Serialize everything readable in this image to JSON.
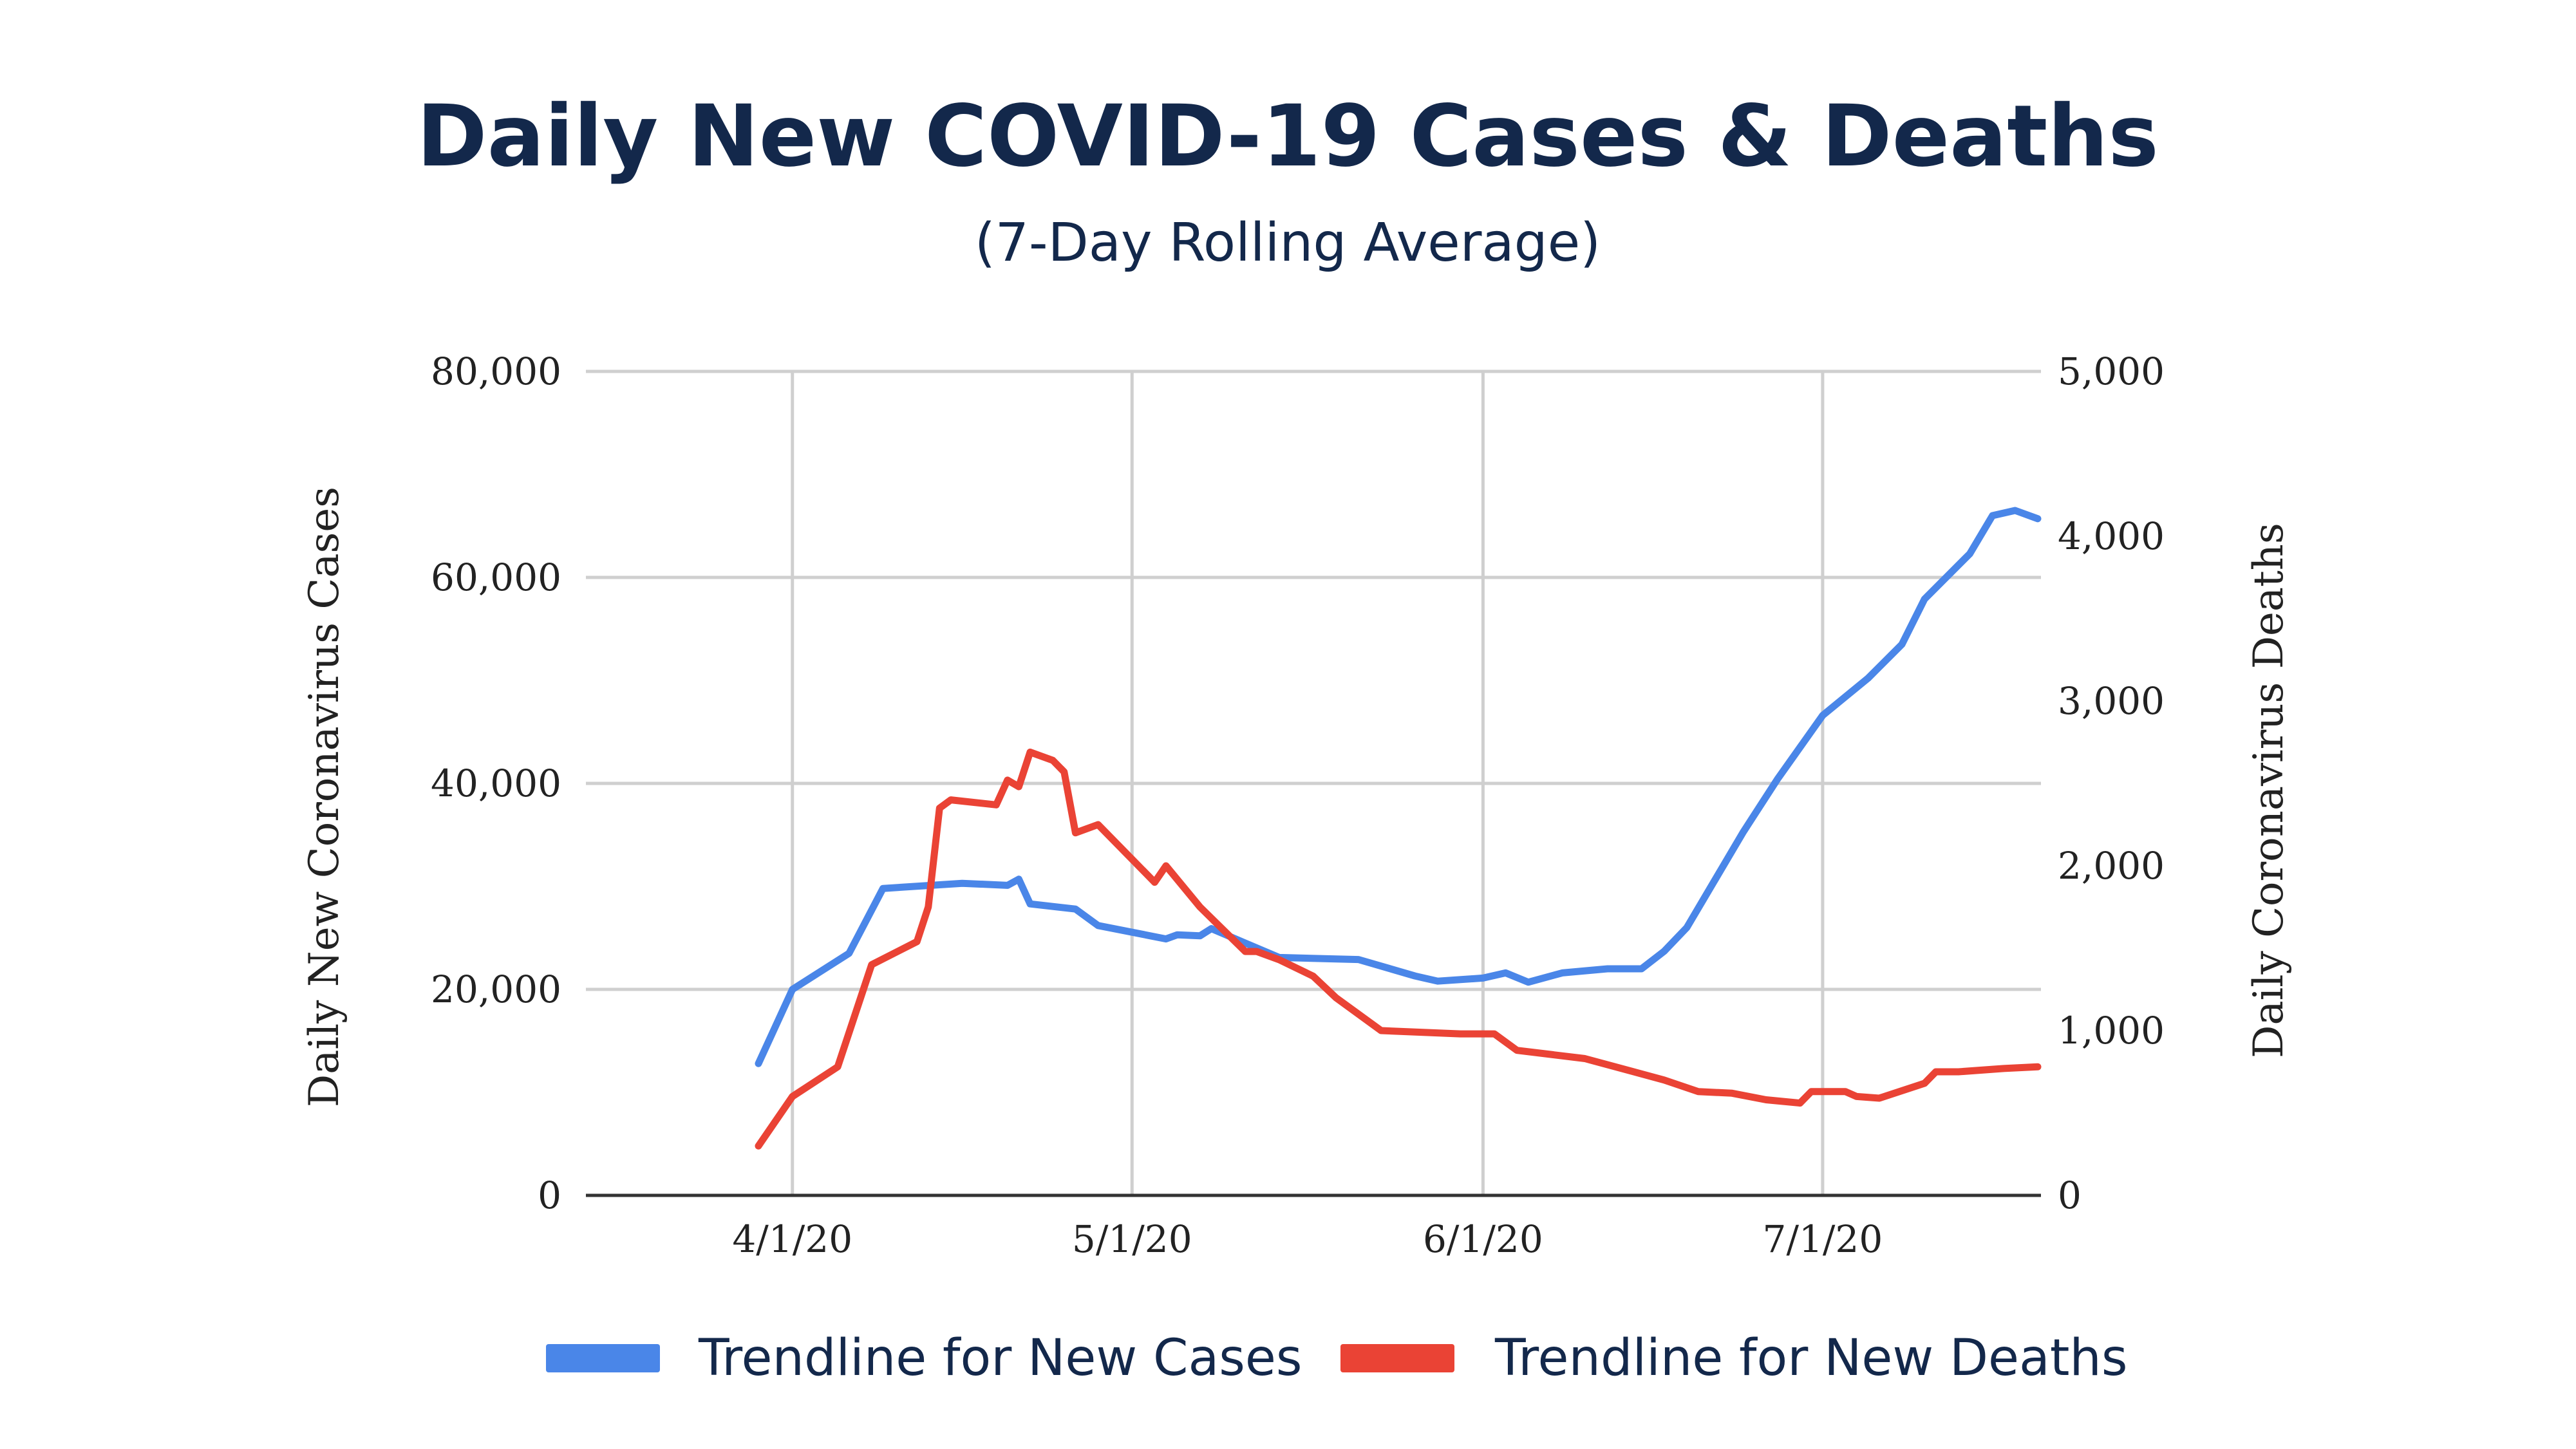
{
  "chart_data": {
    "type": "line",
    "title": "Daily New COVID-19 Cases & Deaths",
    "subtitle": "(7-Day Rolling Average)",
    "x_ticks": [
      "4/1/20",
      "5/1/20",
      "6/1/20",
      "7/1/20"
    ],
    "y_left": {
      "label": "Daily New Coronavirus Cases",
      "range": [
        0,
        80000
      ],
      "ticks": [
        "0",
        "20,000",
        "40,000",
        "60,000",
        "80,000"
      ]
    },
    "y_right": {
      "label": "Daily Coronavirus Deaths",
      "range": [
        0,
        5000
      ],
      "ticks": [
        "0",
        "1,000",
        "2,000",
        "3,000",
        "4,000",
        "5,000"
      ]
    },
    "grid": true,
    "legend_position": "bottom",
    "series": [
      {
        "name": "Trendline for New Cases",
        "axis": "left",
        "color": "#4a86e8",
        "points": [
          [
            "3/29/20",
            12800
          ],
          [
            "4/1/20",
            20000
          ],
          [
            "4/6/20",
            23500
          ],
          [
            "4/9/20",
            29800
          ],
          [
            "4/16/20",
            30300
          ],
          [
            "4/20/20",
            30100
          ],
          [
            "4/21/20",
            30700
          ],
          [
            "4/22/20",
            28300
          ],
          [
            "4/26/20",
            27800
          ],
          [
            "4/28/20",
            26200
          ],
          [
            "5/4/20",
            24900
          ],
          [
            "5/5/20",
            25300
          ],
          [
            "5/7/20",
            25200
          ],
          [
            "5/8/20",
            25900
          ],
          [
            "5/11/20",
            24500
          ],
          [
            "5/14/20",
            23100
          ],
          [
            "5/21/20",
            22900
          ],
          [
            "5/26/20",
            21300
          ],
          [
            "5/28/20",
            20800
          ],
          [
            "6/1/20",
            21100
          ],
          [
            "6/3/20",
            21600
          ],
          [
            "6/5/20",
            20700
          ],
          [
            "6/8/20",
            21600
          ],
          [
            "6/12/20",
            22000
          ],
          [
            "6/15/20",
            22000
          ],
          [
            "6/17/20",
            23700
          ],
          [
            "6/19/20",
            26000
          ],
          [
            "6/24/20",
            35300
          ],
          [
            "6/27/20",
            40400
          ],
          [
            "7/1/20",
            46600
          ],
          [
            "7/5/20",
            50200
          ],
          [
            "7/8/20",
            53500
          ],
          [
            "7/10/20",
            57900
          ],
          [
            "7/14/20",
            62300
          ],
          [
            "7/16/20",
            66000
          ],
          [
            "7/18/20",
            66500
          ],
          [
            "7/20/20",
            65700
          ]
        ]
      },
      {
        "name": "Trendline for New Deaths",
        "axis": "right",
        "color": "#ea4335",
        "points": [
          [
            "3/29/20",
            300
          ],
          [
            "4/1/20",
            600
          ],
          [
            "4/5/20",
            780
          ],
          [
            "4/8/20",
            1400
          ],
          [
            "4/12/20",
            1540
          ],
          [
            "4/13/20",
            1750
          ],
          [
            "4/14/20",
            2350
          ],
          [
            "4/15/20",
            2400
          ],
          [
            "4/19/20",
            2370
          ],
          [
            "4/20/20",
            2520
          ],
          [
            "4/21/20",
            2480
          ],
          [
            "4/22/20",
            2690
          ],
          [
            "4/24/20",
            2640
          ],
          [
            "4/25/20",
            2570
          ],
          [
            "4/26/20",
            2200
          ],
          [
            "4/28/20",
            2250
          ],
          [
            "5/3/20",
            1900
          ],
          [
            "5/4/20",
            2000
          ],
          [
            "5/7/20",
            1750
          ],
          [
            "5/11/20",
            1480
          ],
          [
            "5/12/20",
            1480
          ],
          [
            "5/14/20",
            1430
          ],
          [
            "5/17/20",
            1330
          ],
          [
            "5/19/20",
            1200
          ],
          [
            "5/23/20",
            1000
          ],
          [
            "5/30/20",
            980
          ],
          [
            "6/2/20",
            980
          ],
          [
            "6/4/20",
            880
          ],
          [
            "6/10/20",
            830
          ],
          [
            "6/17/20",
            700
          ],
          [
            "6/20/20",
            630
          ],
          [
            "6/23/20",
            620
          ],
          [
            "6/26/20",
            580
          ],
          [
            "6/29/20",
            560
          ],
          [
            "6/30/20",
            630
          ],
          [
            "7/3/20",
            630
          ],
          [
            "7/4/20",
            600
          ],
          [
            "7/6/20",
            590
          ],
          [
            "7/10/20",
            680
          ],
          [
            "7/11/20",
            750
          ],
          [
            "7/13/20",
            750
          ],
          [
            "7/17/20",
            770
          ],
          [
            "7/20/20",
            780
          ]
        ]
      }
    ]
  }
}
